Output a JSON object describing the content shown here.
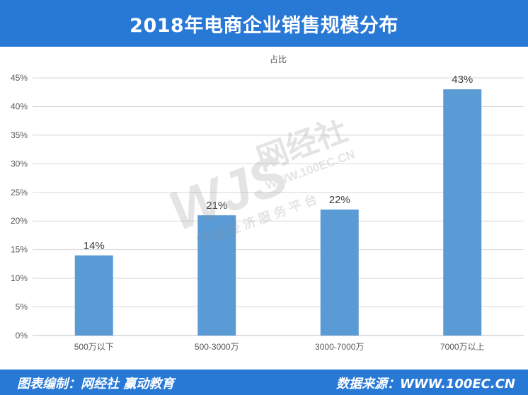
{
  "header": {
    "title": "2018年电商企业销售规模分布"
  },
  "chart_data": {
    "type": "bar",
    "title": "占比",
    "categories": [
      "500万以下",
      "500-3000万",
      "3000-7000万",
      "7000万以上"
    ],
    "values": [
      14,
      21,
      22,
      43
    ],
    "data_labels": [
      "14%",
      "21%",
      "22%",
      "43%"
    ],
    "ylim": [
      0,
      45
    ],
    "yticks": [
      "0%",
      "5%",
      "10%",
      "15%",
      "20%",
      "25%",
      "30%",
      "35%",
      "40%",
      "45%"
    ],
    "grid": true,
    "bar_color": "#5b9bd5"
  },
  "watermark": {
    "logo": "WJS",
    "brand": "网经社",
    "url": "WWW.100EC.CN",
    "tagline": "网 络 经 济 服 务 平 台"
  },
  "footer": {
    "left": "图表编制：网经社 赢动教育",
    "right": "数据来源：WWW.100EC.CN"
  },
  "colors": {
    "header_bg": "#2878d6",
    "bar": "#5b9bd5",
    "grid": "#d9d9d9"
  }
}
